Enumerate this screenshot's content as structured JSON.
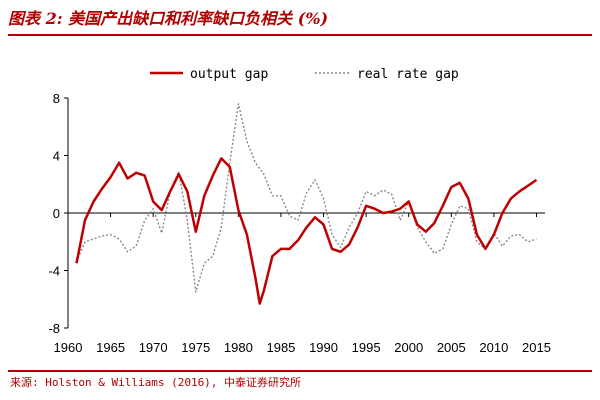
{
  "figure": {
    "title": "图表 2: 美国产出缺口和利率缺口负相关 (%)",
    "source": "来源: Holston & Williams (2016), 中泰证券研究所",
    "colors": {
      "accent": "#b00000",
      "output_gap": "#c00000",
      "real_rate_gap": "#888888"
    }
  },
  "chart_data": {
    "type": "line",
    "xlim": [
      1960,
      2016
    ],
    "ylim": [
      -8,
      8
    ],
    "xticks": [
      "1960",
      "1965",
      "1970",
      "1975",
      "1980",
      "1985",
      "1990",
      "1995",
      "2000",
      "2005",
      "2010",
      "2015"
    ],
    "yticks": [
      "8",
      "4",
      "0",
      "-4",
      "-8"
    ],
    "legend": {
      "placement": "top-center",
      "entries": [
        "output gap",
        "real rate gap"
      ]
    },
    "grid": false,
    "series": [
      {
        "name": "output gap",
        "style": "solid",
        "x": [
          1961,
          1962,
          1963,
          1964,
          1965,
          1966,
          1967,
          1968,
          1969,
          1970,
          1971,
          1972,
          1973,
          1974,
          1975,
          1976,
          1977,
          1978,
          1979,
          1980,
          1981,
          1982,
          1982.5,
          1983,
          1984,
          1985,
          1986,
          1987,
          1988,
          1989,
          1990,
          1991,
          1992,
          1993,
          1994,
          1995,
          1996,
          1997,
          1998,
          1999,
          2000,
          2001,
          2002,
          2003,
          2004,
          2005,
          2006,
          2007,
          2008,
          2009,
          2010,
          2011,
          2012,
          2013,
          2014,
          2015
        ],
        "y": [
          -3.5,
          -0.5,
          0.8,
          1.7,
          2.5,
          3.5,
          2.4,
          2.8,
          2.6,
          0.8,
          0.2,
          1.5,
          2.7,
          1.5,
          -1.3,
          1.2,
          2.6,
          3.8,
          3.2,
          0.2,
          -1.5,
          -4.5,
          -6.3,
          -5.4,
          -3.0,
          -2.5,
          -2.5,
          -1.9,
          -1.0,
          -0.3,
          -0.8,
          -2.5,
          -2.7,
          -2.2,
          -1.0,
          0.5,
          0.3,
          0.0,
          0.1,
          0.3,
          0.8,
          -0.8,
          -1.3,
          -0.7,
          0.5,
          1.8,
          2.1,
          1.0,
          -1.5,
          -2.5,
          -1.5,
          0.0,
          1.0,
          1.5,
          1.9,
          2.3
        ]
      },
      {
        "name": "real rate gap",
        "style": "dotted",
        "x": [
          1961,
          1962,
          1963,
          1964,
          1965,
          1966,
          1967,
          1968,
          1969,
          1970,
          1971,
          1972,
          1973,
          1974,
          1975,
          1976,
          1977,
          1978,
          1979,
          1980,
          1981,
          1982,
          1983,
          1984,
          1985,
          1986,
          1987,
          1988,
          1989,
          1990,
          1991,
          1992,
          1993,
          1994,
          1995,
          1996,
          1997,
          1998,
          1999,
          2000,
          2001,
          2002,
          2003,
          2004,
          2005,
          2006,
          2007,
          2008,
          2009,
          2010,
          2011,
          2012,
          2013,
          2014,
          2015
        ],
        "y": [
          -3.4,
          -2.0,
          -1.8,
          -1.6,
          -1.5,
          -1.8,
          -2.7,
          -2.3,
          -0.5,
          0.3,
          -1.4,
          1.5,
          2.9,
          -0.5,
          -5.5,
          -3.5,
          -3.0,
          -1.0,
          3.5,
          7.6,
          5.0,
          3.5,
          2.7,
          1.2,
          1.2,
          -0.2,
          -0.5,
          1.4,
          2.3,
          1.0,
          -1.5,
          -2.4,
          -1.0,
          0.0,
          1.5,
          1.2,
          1.6,
          1.3,
          -0.5,
          0.8,
          -1.0,
          -2.0,
          -2.8,
          -2.5,
          -0.8,
          0.5,
          0.3,
          -2.0,
          -2.5,
          -1.4,
          -2.3,
          -1.6,
          -1.5,
          -2.0,
          -1.8
        ]
      }
    ]
  }
}
